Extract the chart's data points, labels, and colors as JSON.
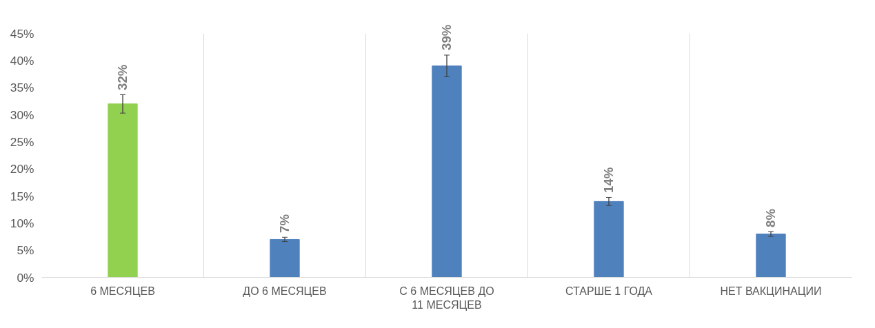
{
  "chart_data": {
    "type": "bar",
    "categories": [
      "6 МЕСЯЦЕВ",
      "ДО 6 МЕСЯЦЕВ",
      "С 6 МЕСЯЦЕВ ДО 11 МЕСЯЦЕВ",
      "СТАРШЕ 1 ГОДА",
      "НЕТ ВАКЦИНАЦИИ"
    ],
    "values": [
      32,
      7,
      39,
      14,
      8
    ],
    "colors": [
      "#92d050",
      "#4f81bd",
      "#4f81bd",
      "#4f81bd",
      "#4f81bd"
    ],
    "errors": [
      1.7,
      0.4,
      2,
      0.75,
      0.45
    ],
    "value_labels": [
      "32%",
      "7%",
      "39%",
      "14%",
      "8%"
    ],
    "ylim": [
      0,
      45
    ],
    "yticks": [
      {
        "value": 0,
        "label": "0%"
      },
      {
        "value": 5,
        "label": "5%"
      },
      {
        "value": 10,
        "label": "10%"
      },
      {
        "value": 15,
        "label": "15%"
      },
      {
        "value": 20,
        "label": "20%"
      },
      {
        "value": 25,
        "label": "25%"
      },
      {
        "value": 30,
        "label": "30%"
      },
      {
        "value": 35,
        "label": "35%"
      },
      {
        "value": 40,
        "label": "40%"
      },
      {
        "value": 45,
        "label": "45%"
      }
    ],
    "grid": "x"
  }
}
